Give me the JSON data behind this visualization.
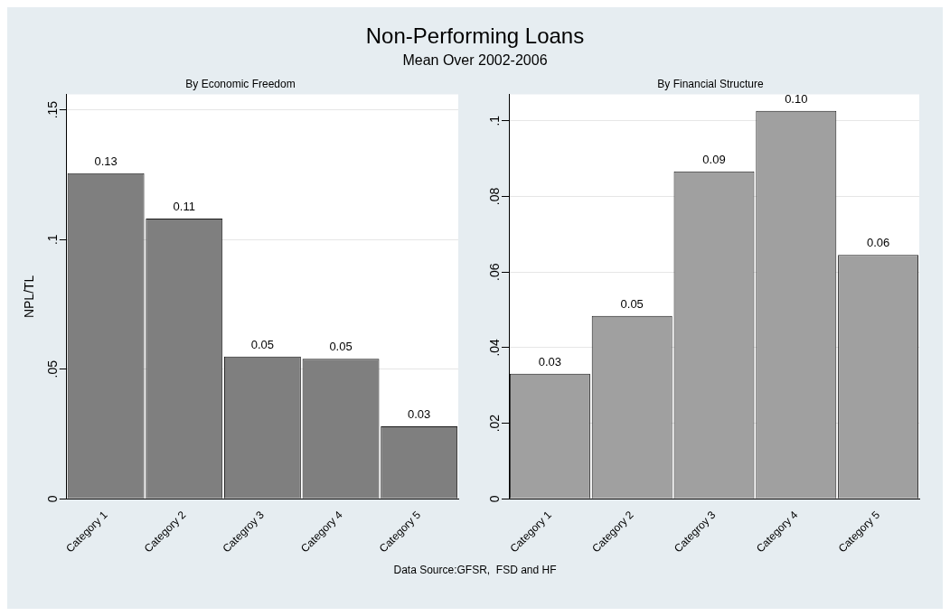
{
  "chart_data": [
    {
      "type": "other",
      "title": "Non-Performing Loans",
      "subtitle": "Mean Over 2002-2006",
      "annotations": [
        "Data Source:GFSR,  FSD and HF"
      ]
    },
    {
      "type": "bar",
      "title": "By Economic Freedom",
      "ylabel": "NPL/TL",
      "categories": [
        "Category 1",
        "Category 2",
        "Categroy 3",
        "Category 4",
        "Category 5"
      ],
      "values": [
        0.1256,
        0.1081,
        0.0549,
        0.054,
        0.028
      ],
      "value_labels": [
        "0.13",
        "0.11",
        "0.05",
        "0.05",
        "0.03"
      ],
      "color": "#7f7f7f",
      "ylim": [
        0,
        0.156
      ],
      "yticks": [
        {
          "value": 0,
          "label": "0"
        },
        {
          "value": 0.05,
          "label": ".05"
        },
        {
          "value": 0.1,
          "label": ".1"
        },
        {
          "value": 0.15,
          "label": ".15"
        }
      ],
      "grid": "y"
    },
    {
      "type": "bar",
      "title": "By Financial Structure",
      "categories": [
        "Category 1",
        "Category 2",
        "Categroy 3",
        "Category 4",
        "Category 5"
      ],
      "values": [
        0.0331,
        0.0484,
        0.0866,
        0.1026,
        0.0645
      ],
      "value_labels": [
        "0.03",
        "0.05",
        "0.09",
        "0.10",
        "0.06"
      ],
      "color": "#a0a0a0",
      "ylim": [
        0,
        0.107
      ],
      "yticks": [
        {
          "value": 0,
          "label": "0"
        },
        {
          "value": 0.02,
          "label": ".02"
        },
        {
          "value": 0.04,
          "label": ".04"
        },
        {
          "value": 0.06,
          "label": ".06"
        },
        {
          "value": 0.08,
          "label": ".08"
        },
        {
          "value": 0.1,
          "label": ".1"
        }
      ],
      "grid": "y"
    }
  ]
}
